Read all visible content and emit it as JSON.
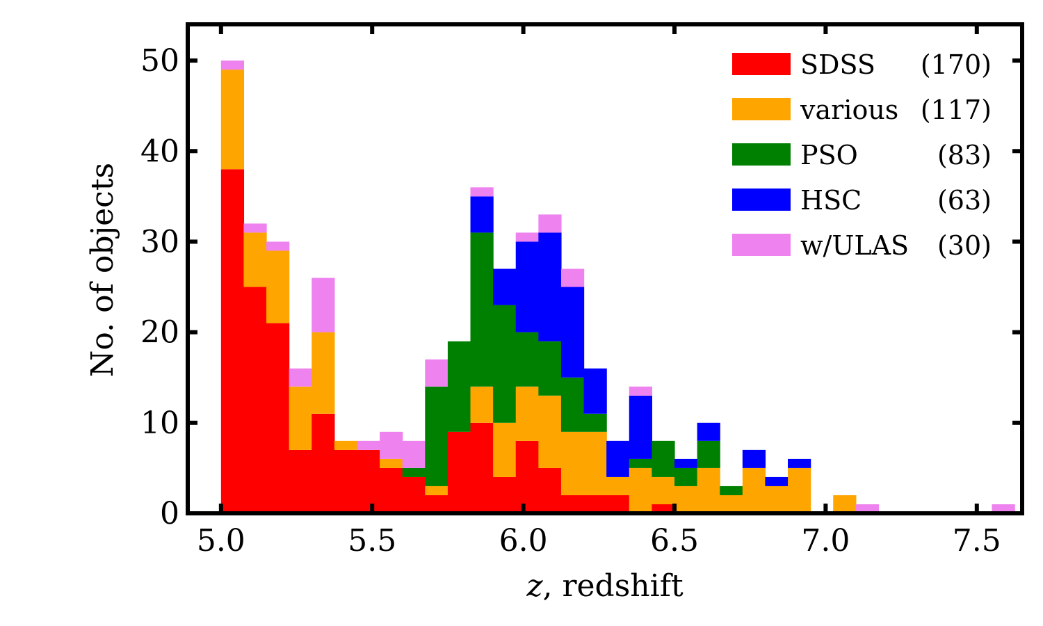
{
  "chart_data": {
    "type": "bar",
    "subtype": "stacked-histogram",
    "title": "",
    "xlabel_italic": "z",
    "xlabel_rest": ", redshift",
    "ylabel": "No. of objects",
    "xlim": [
      4.89,
      7.65
    ],
    "ylim": [
      0,
      54
    ],
    "grid": false,
    "legend_position": "top-right",
    "x_ticks": [
      5.0,
      5.5,
      6.0,
      6.5,
      7.0,
      7.5
    ],
    "x_tick_labels": [
      "5.0",
      "5.5",
      "6.0",
      "6.5",
      "7.0",
      "7.5"
    ],
    "y_ticks": [
      0,
      10,
      20,
      30,
      40,
      50
    ],
    "y_tick_labels": [
      "0",
      "10",
      "20",
      "30",
      "40",
      "50"
    ],
    "bin_edges": [
      5.0,
      5.075,
      5.15,
      5.225,
      5.3,
      5.375,
      5.45,
      5.525,
      5.6,
      5.675,
      5.75,
      5.825,
      5.9,
      5.975,
      6.05,
      6.125,
      6.2,
      6.275,
      6.35,
      6.425,
      6.5,
      6.575,
      6.65,
      6.725,
      6.8,
      6.875,
      6.95,
      7.025,
      7.1,
      7.175,
      7.25,
      7.325,
      7.4,
      7.475,
      7.55,
      7.625
    ],
    "series": [
      {
        "name": "SDSS",
        "count": "(170)",
        "color": "#ff0000",
        "values": [
          38,
          25,
          21,
          7,
          11,
          7,
          7,
          5,
          4,
          2,
          9,
          10,
          4,
          8,
          5,
          2,
          2,
          2,
          0,
          1,
          0,
          0,
          0,
          0,
          0,
          0,
          0,
          0,
          0,
          0,
          0,
          0,
          0,
          0,
          0
        ]
      },
      {
        "name": "various",
        "count": "(117)",
        "color": "#ffa500",
        "values": [
          11,
          6,
          8,
          7,
          9,
          1,
          0,
          1,
          0,
          1,
          0,
          4,
          6,
          6,
          8,
          7,
          7,
          2,
          5,
          3,
          3,
          5,
          2,
          5,
          3,
          5,
          0,
          2,
          0,
          0,
          0,
          0,
          0,
          0,
          0
        ]
      },
      {
        "name": "PSO",
        "count": "(83)",
        "color": "#008000",
        "values": [
          0,
          0,
          0,
          0,
          0,
          0,
          0,
          0,
          1,
          11,
          10,
          17,
          13,
          6,
          6,
          6,
          2,
          0,
          1,
          4,
          2,
          3,
          1,
          0,
          0,
          0,
          0,
          0,
          0,
          0,
          0,
          0,
          0,
          0,
          0
        ]
      },
      {
        "name": "HSC",
        "count": "(63)",
        "color": "#0000ff",
        "values": [
          0,
          0,
          0,
          0,
          0,
          0,
          0,
          0,
          0,
          0,
          0,
          4,
          4,
          10,
          12,
          10,
          5,
          4,
          7,
          0,
          1,
          2,
          0,
          2,
          1,
          1,
          0,
          0,
          0,
          0,
          0,
          0,
          0,
          0,
          0
        ]
      },
      {
        "name": "w/ULAS",
        "count": "(30)",
        "color": "#ee82ee",
        "values": [
          1,
          1,
          1,
          2,
          6,
          0,
          1,
          3,
          3,
          3,
          0,
          1,
          0,
          1,
          2,
          2,
          0,
          0,
          1,
          0,
          0,
          0,
          0,
          0,
          0,
          0,
          0,
          0,
          1,
          0,
          0,
          0,
          0,
          0,
          1
        ]
      }
    ]
  }
}
